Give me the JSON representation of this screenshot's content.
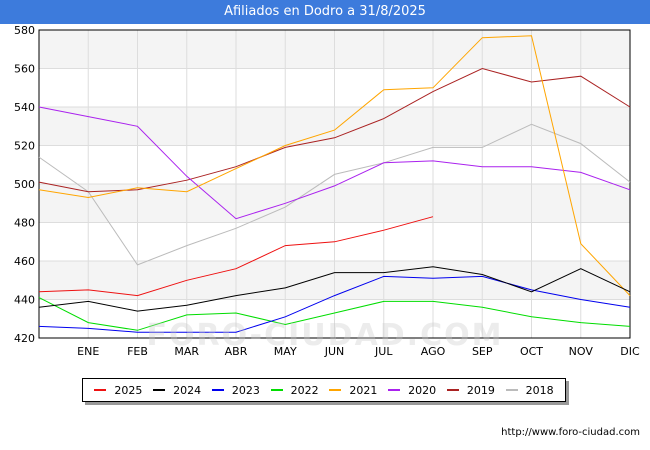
{
  "title": "Afiliados en Dodro a 31/8/2025",
  "footer": "http://www.foro-ciudad.com",
  "watermark": "FORO-CIUDAD.COM",
  "chart_data": {
    "type": "line",
    "title": "Afiliados en Dodro a 31/8/2025",
    "categories": [
      "",
      "ENE",
      "FEB",
      "MAR",
      "ABR",
      "MAY",
      "JUN",
      "JUL",
      "AGO",
      "SEP",
      "OCT",
      "NOV",
      "DIC"
    ],
    "ylim": [
      420,
      580
    ],
    "yticks": [
      420,
      440,
      460,
      480,
      500,
      520,
      540,
      560,
      580
    ],
    "grid": true,
    "legend_position": "bottom",
    "series": [
      {
        "name": "2025",
        "color": "#ee1111",
        "values": [
          444,
          445,
          442,
          450,
          456,
          468,
          470,
          476,
          483,
          null,
          null,
          null,
          null
        ]
      },
      {
        "name": "2024",
        "color": "#000000",
        "values": [
          436,
          439,
          434,
          437,
          442,
          446,
          454,
          454,
          457,
          453,
          444,
          456,
          444
        ]
      },
      {
        "name": "2023",
        "color": "#0000ee",
        "values": [
          426,
          425,
          423,
          423,
          423,
          431,
          442,
          452,
          451,
          452,
          445,
          440,
          436
        ]
      },
      {
        "name": "2022",
        "color": "#00dd00",
        "values": [
          441,
          428,
          424,
          432,
          433,
          427,
          433,
          439,
          439,
          436,
          431,
          428,
          426
        ]
      },
      {
        "name": "2021",
        "color": "#ffa500",
        "values": [
          497,
          493,
          498,
          496,
          508,
          520,
          528,
          549,
          550,
          576,
          577,
          469,
          442
        ]
      },
      {
        "name": "2020",
        "color": "#aa22ee",
        "values": [
          540,
          535,
          530,
          504,
          482,
          490,
          499,
          511,
          512,
          509,
          509,
          506,
          497
        ]
      },
      {
        "name": "2019",
        "color": "#aa2222",
        "values": [
          501,
          496,
          497,
          502,
          509,
          519,
          524,
          534,
          548,
          560,
          553,
          556,
          540
        ]
      },
      {
        "name": "2018",
        "color": "#bbbbbb",
        "values": [
          514,
          496,
          458,
          468,
          477,
          488,
          505,
          511,
          519,
          519,
          531,
          521,
          501
        ]
      }
    ]
  }
}
